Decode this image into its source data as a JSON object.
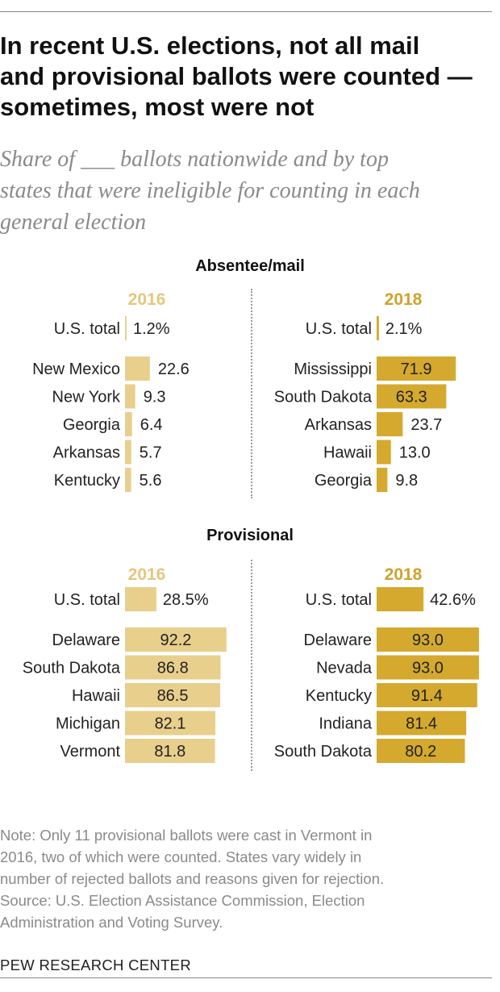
{
  "title_lines": [
    "In recent U.S. elections, not all mail",
    "and provisional ballots were counted —",
    "sometimes, most were not"
  ],
  "subtitle_lines": [
    "Share of ___ ballots nationwide and by top",
    "states that were ineligible for counting in each",
    "general election"
  ],
  "note_lines": [
    "Note: Only 11 provisional ballots were cast in Vermont in",
    "2016, two of which were counted. States vary widely in",
    "number of rejected ballots and reasons given for rejection.",
    "Source: U.S. Election Assistance Commission, Election",
    "Administration and Voting Survey."
  ],
  "footer": "PEW RESEARCH CENTER",
  "colors": {
    "y2016": "#e8cf8c",
    "y2018": "#d4a92e",
    "year2016_text": "#e3c77d",
    "year2018_text": "#cfa22a"
  },
  "chart_data": [
    {
      "type": "bar",
      "section": "Absentee/mail",
      "year": "2016",
      "total_label": "U.S. total",
      "total_value": 1.2,
      "total_display": "1.2%",
      "categories": [
        "New Mexico",
        "New York",
        "Georgia",
        "Arkansas",
        "Kentucky"
      ],
      "values": [
        22.6,
        9.3,
        6.4,
        5.7,
        5.6
      ],
      "labels": [
        "22.6",
        "9.3",
        "6.4",
        "5.7",
        "5.6"
      ]
    },
    {
      "type": "bar",
      "section": "Absentee/mail",
      "year": "2018",
      "total_label": "U.S. total",
      "total_value": 2.1,
      "total_display": "2.1%",
      "categories": [
        "Mississippi",
        "South Dakota",
        "Arkansas",
        "Hawaii",
        "Georgia"
      ],
      "values": [
        71.9,
        63.3,
        23.7,
        13.0,
        9.8
      ],
      "labels": [
        "71.9",
        "63.3",
        "23.7",
        "13.0",
        "9.8"
      ]
    },
    {
      "type": "bar",
      "section": "Provisional",
      "year": "2016",
      "total_label": "U.S. total",
      "total_value": 28.5,
      "total_display": "28.5%",
      "categories": [
        "Delaware",
        "South Dakota",
        "Hawaii",
        "Michigan",
        "Vermont"
      ],
      "values": [
        92.2,
        86.8,
        86.5,
        82.1,
        81.8
      ],
      "labels": [
        "92.2",
        "86.8",
        "86.5",
        "82.1",
        "81.8"
      ]
    },
    {
      "type": "bar",
      "section": "Provisional",
      "year": "2018",
      "total_label": "U.S. total",
      "total_value": 42.6,
      "total_display": "42.6%",
      "categories": [
        "Delaware",
        "Nevada",
        "Kentucky",
        "Indiana",
        "South Dakota"
      ],
      "values": [
        93.0,
        93.0,
        91.4,
        81.4,
        80.2
      ],
      "labels": [
        "93.0",
        "93.0",
        "91.4",
        "81.4",
        "80.2"
      ]
    }
  ]
}
